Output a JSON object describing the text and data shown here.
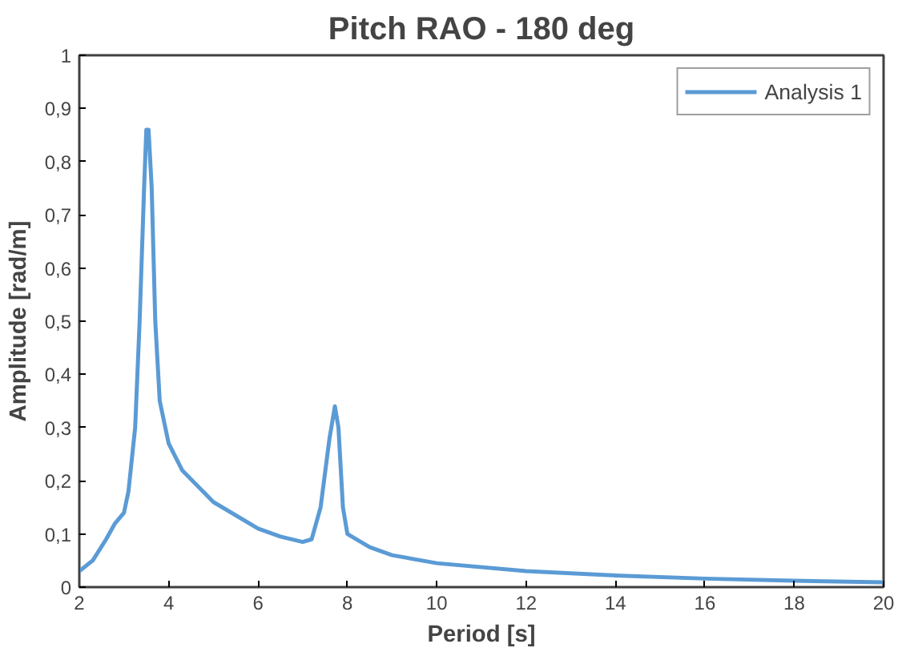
{
  "chart_data": {
    "type": "line",
    "title": "Pitch RAO - 180 deg",
    "xlabel": "Period [s]",
    "ylabel": "Amplitude [rad/m]",
    "x": [
      2,
      2.3,
      2.6,
      2.8,
      3.0,
      3.1,
      3.25,
      3.35,
      3.45,
      3.5,
      3.55,
      3.62,
      3.7,
      3.8,
      4.0,
      4.3,
      5,
      6,
      6.5,
      7.0,
      7.2,
      7.4,
      7.6,
      7.72,
      7.8,
      7.9,
      8.0,
      8.5,
      9,
      10,
      12,
      14,
      16,
      18,
      20
    ],
    "series": [
      {
        "name": "Analysis 1",
        "color": "#5b9bd5",
        "values": [
          0.03,
          0.05,
          0.09,
          0.12,
          0.14,
          0.18,
          0.3,
          0.5,
          0.75,
          0.86,
          0.86,
          0.75,
          0.5,
          0.35,
          0.27,
          0.22,
          0.16,
          0.11,
          0.095,
          0.085,
          0.09,
          0.15,
          0.28,
          0.34,
          0.3,
          0.15,
          0.1,
          0.075,
          0.06,
          0.045,
          0.03,
          0.022,
          0.016,
          0.012,
          0.009
        ]
      }
    ],
    "xlim": [
      2,
      20
    ],
    "xticks": [
      2,
      4,
      6,
      8,
      10,
      12,
      14,
      16,
      18,
      20
    ],
    "ylim": [
      0,
      1
    ],
    "yticks": [
      0,
      {
        "value": 0.1,
        "label": "0,1"
      },
      {
        "value": 0.2,
        "label": "0,2"
      },
      {
        "value": 0.3,
        "label": "0,3"
      },
      {
        "value": 0.4,
        "label": "0,4"
      },
      {
        "value": 0.5,
        "label": "0,5"
      },
      {
        "value": 0.6,
        "label": "0,6"
      },
      {
        "value": 0.7,
        "label": "0,7"
      },
      {
        "value": 0.8,
        "label": "0,8"
      },
      {
        "value": 0.9,
        "label": "0,9"
      },
      1
    ],
    "grid": false,
    "legend": "top right",
    "marker": "none",
    "line_style": "solid"
  }
}
